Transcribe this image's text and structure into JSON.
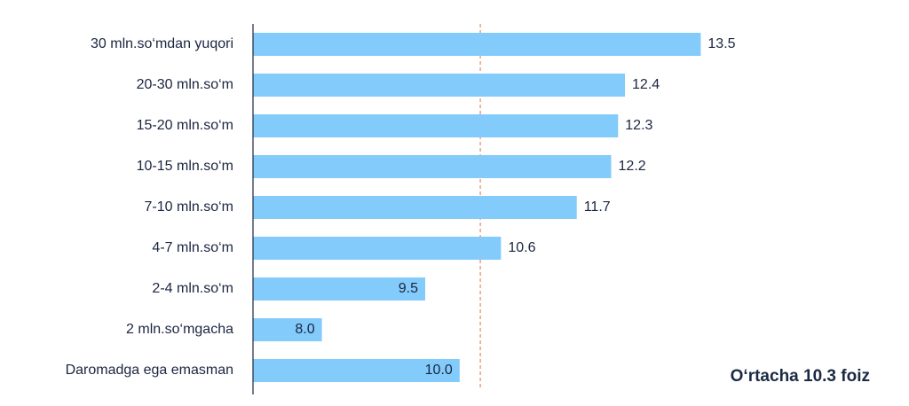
{
  "chart_data": {
    "type": "bar",
    "orientation": "horizontal",
    "categories": [
      "30 mln.so‘mdan yuqori",
      "20-30 mln.so‘m",
      "15-20 mln.so‘m",
      "10-15 mln.so‘m",
      "7-10 mln.so‘m",
      "4-7 mln.so‘m",
      "2-4 mln.so‘m",
      "2 mln.so‘mgacha",
      "Daromadga ega emasman"
    ],
    "values": [
      13.5,
      12.4,
      12.3,
      12.2,
      11.7,
      10.6,
      9.5,
      8,
      10
    ],
    "value_labels": [
      "13.5",
      "12.4",
      "12.3",
      "12.2",
      "11.7",
      "10.6",
      "9.5",
      "8.0",
      "10.0"
    ],
    "color": "#82cbfb",
    "xlim": [
      7,
      14.5
    ],
    "average": 10.3,
    "average_color": "#e48a5c",
    "annotation": "O‘rtacha 10.3 foiz"
  }
}
